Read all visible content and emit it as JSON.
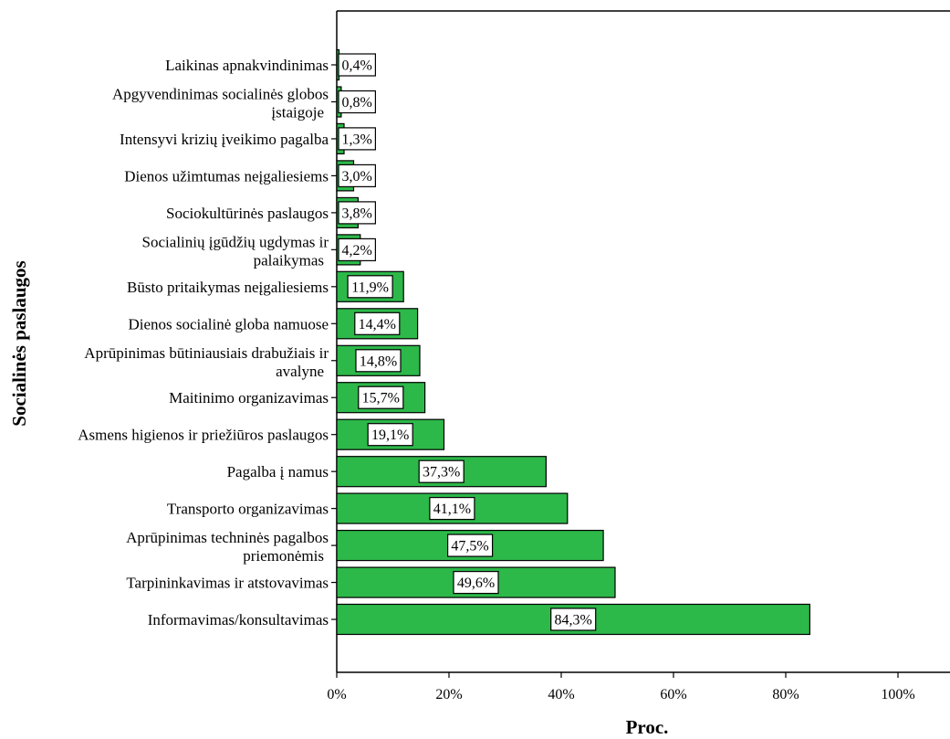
{
  "chart_data": {
    "type": "bar",
    "orientation": "horizontal",
    "ylabel": "Socialinės paslaugos",
    "xlabel": "Proc.",
    "xlim": [
      0,
      100
    ],
    "x_ticks": [
      "0%",
      "20%",
      "40%",
      "60%",
      "80%",
      "100%"
    ],
    "grid": false,
    "bar_color": "#2db84a",
    "categories": [
      [
        "Laikinas apnakvindinimas"
      ],
      [
        "Apgyvendinimas socialinės globos",
        "įstaigoje"
      ],
      [
        "Intensyvi krizių įveikimo pagalba"
      ],
      [
        "Dienos užimtumas neįgaliesiems"
      ],
      [
        "Sociokultūrinės paslaugos"
      ],
      [
        "Socialinių įgūdžių ugdymas ir",
        "palaikymas"
      ],
      [
        "Būsto pritaikymas neįgaliesiems"
      ],
      [
        "Dienos socialinė globa namuose"
      ],
      [
        "Aprūpinimas būtiniausiais drabužiais ir",
        "avalyne"
      ],
      [
        "Maitinimo organizavimas"
      ],
      [
        "Asmens higienos ir priežiūros paslaugos"
      ],
      [
        "Pagalba į namus"
      ],
      [
        "Transporto organizavimas"
      ],
      [
        "Aprūpinimas techninės pagalbos",
        "priemonėmis"
      ],
      [
        "Tarpininkavimas ir atstovavimas"
      ],
      [
        "Informavimas/konsultavimas"
      ]
    ],
    "values": [
      0.4,
      0.8,
      1.3,
      3.0,
      3.8,
      4.2,
      11.9,
      14.4,
      14.8,
      15.7,
      19.1,
      37.3,
      41.1,
      47.5,
      49.6,
      84.3
    ],
    "data_labels": [
      "0,4%",
      "0,8%",
      "1,3%",
      "3,0%",
      "3,8%",
      "4,2%",
      "11,9%",
      "14,4%",
      "14,8%",
      "15,7%",
      "19,1%",
      "37,3%",
      "41,1%",
      "47,5%",
      "49,6%",
      "84,3%"
    ]
  }
}
